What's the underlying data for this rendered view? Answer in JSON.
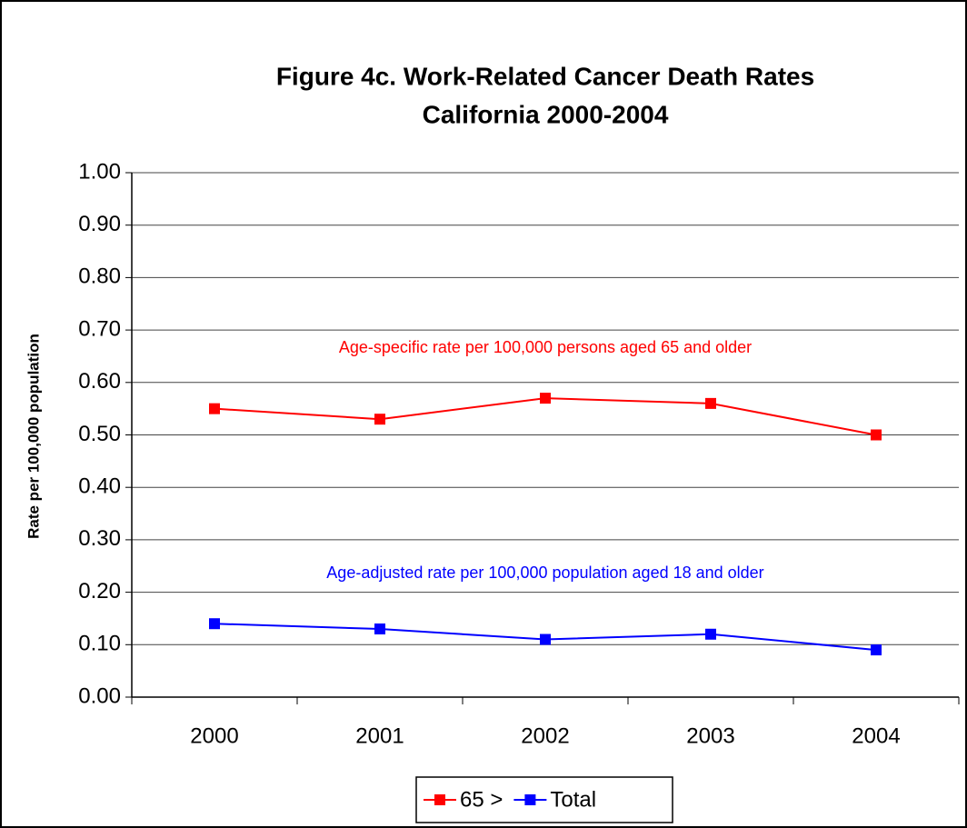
{
  "chart_data": {
    "type": "line",
    "title": [
      "Figure 4c.  Work-Related Cancer Death Rates",
      "California 2000-2004"
    ],
    "y_label": "Rate per 100,000 population",
    "categories": [
      "2000",
      "2001",
      "2002",
      "2003",
      "2004"
    ],
    "series": [
      {
        "name": "65 >",
        "color": "#ff0000",
        "values": [
          0.55,
          0.53,
          0.57,
          0.56,
          0.5
        ]
      },
      {
        "name": "Total",
        "color": "#0000ff",
        "values": [
          0.14,
          0.13,
          0.11,
          0.12,
          0.09
        ]
      }
    ],
    "annotations": [
      {
        "text": "Age-specific rate per 100,000 persons aged 65 and older",
        "color": "#ff0000"
      },
      {
        "text": "Age-adjusted rate per 100,000 population aged 18 and older",
        "color": "#0000ff"
      }
    ],
    "ylim": [
      0,
      1
    ],
    "yticks": [
      {
        "value": 0,
        "label": "0.00"
      },
      {
        "value": 0.1,
        "label": "0.10"
      },
      {
        "value": 0.2,
        "label": "0.20"
      },
      {
        "value": 0.3,
        "label": "0.30"
      },
      {
        "value": 0.4,
        "label": "0.40"
      },
      {
        "value": 0.5,
        "label": "0.50"
      },
      {
        "value": 0.6,
        "label": "0.60"
      },
      {
        "value": 0.7,
        "label": "0.70"
      },
      {
        "value": 0.8,
        "label": "0.80"
      },
      {
        "value": 0.9,
        "label": "0.90"
      },
      {
        "value": 1,
        "label": "1.00"
      }
    ],
    "grid": true,
    "legend": "bottom"
  }
}
